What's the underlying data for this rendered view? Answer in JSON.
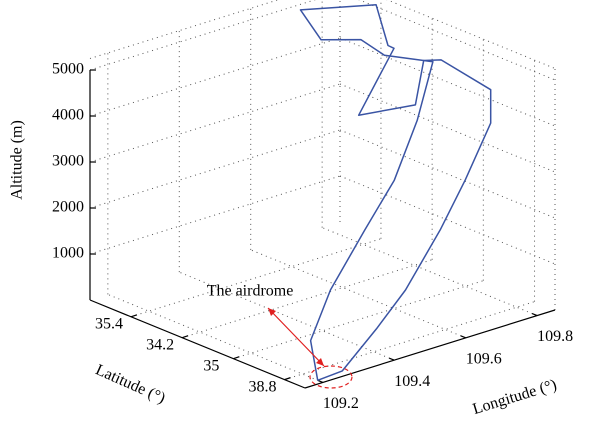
{
  "chart_data": {
    "type": "line3d",
    "xlabel": "Longitude (°)",
    "ylabel": "Latitude (°)",
    "zlabel": "Altitude (m)",
    "xlim": [
      109.15,
      109.85
    ],
    "xticks": [
      109.2,
      109.4,
      109.6,
      109.8
    ],
    "categories": [
      "35.4",
      "34.2",
      "35",
      "38.8"
    ],
    "zlim": [
      0,
      5000
    ],
    "zticks": [
      1000,
      2000,
      3000,
      4000,
      5000
    ],
    "grid": true,
    "annotation": "The airdrome",
    "series": [
      {
        "color": "#3a54a4",
        "x": [
          109.2,
          109.2,
          109.25,
          109.34,
          109.42,
          109.51,
          109.62,
          109.55,
          109.52,
          109.42,
          109.45,
          109.59,
          109.54,
          109.61,
          109.58,
          109.71,
          109.61,
          109.64,
          109.71,
          109.67,
          109.64,
          109.55,
          109.44,
          109.35,
          109.24,
          109.2
        ],
        "y": [
          3.3,
          3.16,
          3.2,
          3.24,
          3.26,
          3.08,
          2.62,
          2.16,
          1.91,
          1.83,
          1.22,
          1.72,
          2.3,
          1.93,
          1.45,
          1.65,
          2.51,
          2.64,
          3.12,
          3.4,
          3.11,
          3.25,
          3.34,
          3.4,
          3.5,
          3.3
        ],
        "z": [
          0,
          800,
          1800,
          2900,
          3800,
          4800,
          5600,
          5700,
          6000,
          6200,
          6500,
          6500,
          6000,
          5600,
          4000,
          4000,
          5600,
          5600,
          5000,
          4500,
          3200,
          2400,
          1400,
          800,
          200,
          0
        ]
      }
    ]
  }
}
